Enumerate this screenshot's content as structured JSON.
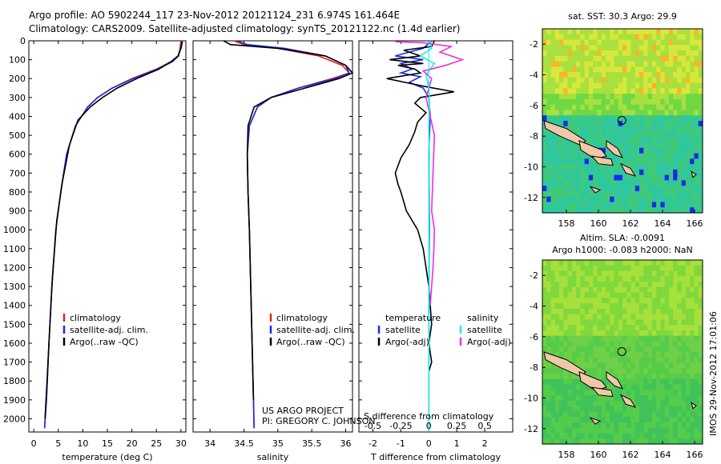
{
  "header": {
    "line1": "Argo profile: AO 5902244_117 23-Nov-2012 20121124_231 6.974S 161.464E",
    "line2": "Climatology: CARS2009. Satellite-adjusted climatology: synTS_20121122.nc (1.4d earlier)"
  },
  "credits": {
    "project": "US ARGO PROJECT",
    "pi": "PI: GREGORY C. JOHNSON",
    "imos": "IMOS 29-Nov-2012 17:01:06"
  },
  "colors": {
    "climatology": "#e8201a",
    "satellite": "#1a2ae8",
    "argo": "#000000",
    "salinity_satellite": "#22e8e8",
    "argo_adj": "#e830e0"
  },
  "chart_data": [
    {
      "id": "temperature",
      "type": "line",
      "xlabel": "temperature (deg C)",
      "ylabel": "",
      "xlim": [
        -1,
        31
      ],
      "ylim": [
        2070,
        0
      ],
      "xticks": [
        0,
        5,
        10,
        15,
        20,
        25,
        30
      ],
      "xticklabels": [
        "0",
        "5",
        "10",
        "15",
        "20",
        "25",
        "30"
      ],
      "yticks": [
        0,
        100,
        200,
        300,
        400,
        500,
        600,
        700,
        800,
        900,
        1000,
        1100,
        1200,
        1300,
        1400,
        1500,
        1600,
        1700,
        1800,
        1900,
        2000
      ],
      "legend": [
        "climatology",
        "satellite-adj. clim.",
        "Argo(..raw -QC)"
      ],
      "series": [
        {
          "name": "climatology",
          "color": "#e8201a",
          "x": [
            30,
            29.8,
            29.5,
            28,
            25,
            20,
            16,
            13,
            11,
            8.5,
            6.7,
            5.5,
            4.5,
            3.7,
            3.1,
            2.6,
            2.2
          ],
          "y": [
            0,
            40,
            80,
            110,
            150,
            200,
            250,
            300,
            350,
            450,
            600,
            800,
            1000,
            1300,
            1600,
            1900,
            2050
          ]
        },
        {
          "name": "satellite-adj. clim.",
          "color": "#1a2ae8",
          "x": [
            30.2,
            29.9,
            29.5,
            28.3,
            25.2,
            20.3,
            16,
            13,
            11,
            8.5,
            6.7,
            5.5,
            4.5,
            3.7,
            3.1,
            2.6,
            2.2
          ],
          "y": [
            0,
            40,
            80,
            110,
            150,
            200,
            250,
            300,
            350,
            450,
            600,
            800,
            1000,
            1300,
            1600,
            1900,
            2050
          ]
        },
        {
          "name": "Argo(..raw -QC)",
          "color": "#000000",
          "x": [
            30.3,
            30,
            29.4,
            28,
            25.5,
            21,
            17,
            14,
            11.5,
            9,
            7.3,
            5.8,
            4.7,
            3.8,
            3.2,
            2.7,
            2.3
          ],
          "y": [
            5,
            40,
            80,
            110,
            150,
            200,
            250,
            300,
            350,
            420,
            550,
            750,
            950,
            1250,
            1550,
            1800,
            2000
          ]
        }
      ]
    },
    {
      "id": "salinity",
      "type": "line",
      "xlabel": "salinity",
      "ylabel": "",
      "xlim": [
        33.75,
        36.1
      ],
      "ylim": [
        2070,
        0
      ],
      "xticks": [
        34,
        34.5,
        35,
        35.5,
        36
      ],
      "xticklabels": [
        "34",
        "34.5",
        "35",
        "35.5",
        "36"
      ],
      "legend": [
        "climatology",
        "satellite-adj. clim.",
        "Argo(..raw -QC)"
      ],
      "series": [
        {
          "name": "climatology",
          "color": "#e8201a",
          "x": [
            34.35,
            34.5,
            35,
            35.6,
            35.95,
            36.05,
            35.8,
            35.3,
            34.9,
            34.7,
            34.58,
            34.55,
            34.56,
            34.58,
            34.6,
            34.62,
            34.64,
            34.65
          ],
          "y": [
            0,
            20,
            40,
            80,
            130,
            170,
            200,
            250,
            300,
            350,
            450,
            600,
            800,
            1000,
            1300,
            1600,
            1900,
            2050
          ]
        },
        {
          "name": "satellite-adj. clim.",
          "color": "#1a2ae8",
          "x": [
            34.4,
            34.55,
            35.1,
            35.7,
            36,
            36.05,
            35.85,
            35.3,
            34.9,
            34.7,
            34.58,
            34.55,
            34.56,
            34.58,
            34.6,
            34.62,
            34.64,
            34.65
          ],
          "y": [
            0,
            20,
            40,
            80,
            130,
            170,
            200,
            250,
            300,
            350,
            450,
            600,
            800,
            1000,
            1300,
            1600,
            1900,
            2050
          ]
        },
        {
          "name": "Argo(..raw -QC)",
          "color": "#000000",
          "x": [
            34.2,
            34.3,
            35.0,
            35.7,
            36.0,
            36.1,
            35.9,
            35.4,
            34.9,
            34.65,
            34.56,
            34.55,
            34.56,
            34.58,
            34.6,
            34.62,
            34.64
          ],
          "y": [
            0,
            20,
            40,
            80,
            130,
            170,
            200,
            250,
            300,
            350,
            450,
            600,
            800,
            1000,
            1300,
            1600,
            1900
          ]
        }
      ]
    },
    {
      "id": "differences",
      "type": "line",
      "xlabel": "T difference from climatology",
      "xlabel_top": "S difference from climatology",
      "ylabel": "",
      "xlim": [
        -2.5,
        3
      ],
      "ylim": [
        2070,
        0
      ],
      "xticks": [
        -2,
        -1,
        0,
        1,
        2
      ],
      "xticklabels": [
        "-2",
        "-1",
        "0",
        "1",
        "2"
      ],
      "sticks": [
        -0.5,
        -0.25,
        0,
        0.25,
        0.5
      ],
      "sticklabels": [
        "-0.5",
        "-0.25",
        "0",
        "0.25",
        "0.5"
      ],
      "legend_title_t": "temperature",
      "legend_title_s": "salinity",
      "legend_t": [
        "satellite",
        "Argo(-adj)"
      ],
      "legend_s": [
        "satellite",
        "Argo(-adj)"
      ],
      "series": [
        {
          "name": "T satellite",
          "color": "#1a2ae8",
          "x": [
            0.1,
            -0.2,
            -1.2,
            -0.2,
            -1.0,
            -0.6,
            -1.0,
            -0.3,
            -0.7,
            -0.2,
            0,
            0.05,
            0,
            0.02,
            0,
            0
          ],
          "y": [
            0,
            40,
            80,
            100,
            120,
            150,
            170,
            190,
            220,
            250,
            300,
            400,
            600,
            1000,
            1400,
            2000
          ]
        },
        {
          "name": "T Argo(-adj)",
          "color": "#000000",
          "x": [
            0.2,
            0.1,
            -0.9,
            -0.3,
            -1.4,
            -0.2,
            -1.1,
            -0.5,
            -0.3,
            -1.5,
            -0.2,
            0.9,
            -0.3,
            -0.5,
            -0.1,
            -0.4,
            -0.5,
            -0.7,
            -1.0,
            -1.2,
            -1.1,
            -1.0,
            -0.8,
            -0.4,
            -0.2,
            -0.1,
            0,
            0.1,
            0,
            0.1,
            0
          ],
          "y": [
            0,
            30,
            50,
            80,
            100,
            120,
            130,
            150,
            170,
            200,
            240,
            270,
            300,
            330,
            380,
            430,
            480,
            550,
            620,
            700,
            760,
            800,
            900,
            1000,
            1100,
            1200,
            1300,
            1500,
            1600,
            1700,
            1750
          ]
        },
        {
          "name": "S satellite",
          "color": "#22e8e8",
          "x": [
            0.05,
            0.1,
            -0.3,
            0.2,
            -0.1,
            0,
            0.03,
            0,
            0.02,
            0,
            0.01,
            0,
            0
          ],
          "y": [
            0,
            40,
            80,
            120,
            180,
            250,
            350,
            450,
            600,
            800,
            1200,
            1600,
            2050
          ]
        },
        {
          "name": "S Argo(-adj)",
          "color": "#e830e0",
          "x": [
            -1.2,
            -0.2,
            0.8,
            0.4,
            1.2,
            0.6,
            -0.2,
            0.1,
            -0.1,
            0.2,
            0.15,
            0.1,
            0.2,
            0.18,
            0.15,
            0.1,
            0.05
          ],
          "y": [
            5,
            10,
            30,
            60,
            100,
            130,
            160,
            200,
            300,
            500,
            700,
            900,
            1000,
            1100,
            1200,
            1300,
            1400
          ]
        }
      ]
    },
    {
      "id": "sst-map",
      "type": "heatmap",
      "title": "sat. SST: 30.3 Argo: 29.9",
      "xlim": [
        156.5,
        166.5
      ],
      "ylim": [
        -13,
        -1
      ],
      "xticks": [
        158,
        160,
        162,
        164,
        166
      ],
      "xticklabels": [
        "158",
        "160",
        "162",
        "164",
        "166"
      ],
      "yticks": [
        -2,
        -4,
        -6,
        -8,
        -10,
        -12
      ],
      "yticklabels": [
        "-2",
        "-4",
        "-6",
        "-8",
        "-10",
        "-12"
      ],
      "marker": {
        "lon": 161.464,
        "lat": -6.974
      }
    },
    {
      "id": "sla-map",
      "type": "heatmap",
      "title": "Altim. SLA: -0.0091",
      "subtitle": "Argo h1000: -0.083 h2000: NaN",
      "xlim": [
        156.5,
        166.5
      ],
      "ylim": [
        -13,
        -1
      ],
      "xticks": [
        158,
        160,
        162,
        164,
        166
      ],
      "xticklabels": [
        "158",
        "160",
        "162",
        "164",
        "166"
      ],
      "yticks": [
        -2,
        -4,
        -6,
        -8,
        -10,
        -12
      ],
      "yticklabels": [
        "-2",
        "-4",
        "-6",
        "-8",
        "-10",
        "-12"
      ],
      "marker": {
        "lon": 161.464,
        "lat": -6.974
      }
    }
  ]
}
